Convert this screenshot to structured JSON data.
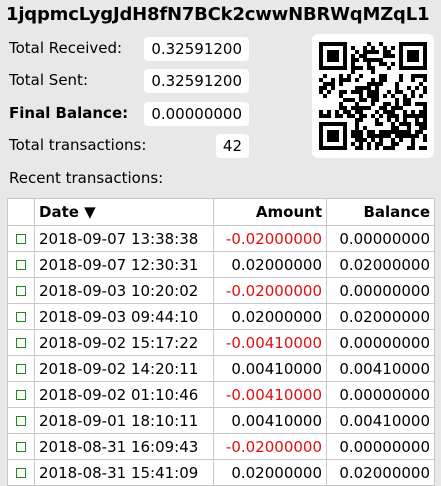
{
  "address": "1jqpmcLygJdH8fN7BCk2cwwNBRWqMZqL1",
  "stats": {
    "total_received_label": "Total Received:",
    "total_received": "0.32591200",
    "total_sent_label": "Total Sent:",
    "total_sent": "0.32591200",
    "final_balance_label": "Final Balance:",
    "final_balance": "0.00000000",
    "total_transactions_label": "Total transactions:",
    "total_transactions": "42"
  },
  "qr_icon": "qr-code-icon",
  "recent_label": "Recent transactions:",
  "table": {
    "headers": {
      "date": "Date ▼",
      "amount": "Amount",
      "balance": "Balance"
    },
    "rows": [
      {
        "date": "2018-09-07 13:38:38",
        "amount": "-0.02000000",
        "balance": "0.00000000",
        "negative": true
      },
      {
        "date": "2018-09-07 12:30:31",
        "amount": "0.02000000",
        "balance": "0.02000000",
        "negative": false
      },
      {
        "date": "2018-09-03 10:20:02",
        "amount": "-0.02000000",
        "balance": "0.00000000",
        "negative": true
      },
      {
        "date": "2018-09-03 09:44:10",
        "amount": "0.02000000",
        "balance": "0.02000000",
        "negative": false
      },
      {
        "date": "2018-09-02 15:17:22",
        "amount": "-0.00410000",
        "balance": "0.00000000",
        "negative": true
      },
      {
        "date": "2018-09-02 14:20:11",
        "amount": "0.00410000",
        "balance": "0.00410000",
        "negative": false
      },
      {
        "date": "2018-09-02 01:10:46",
        "amount": "-0.00410000",
        "balance": "0.00000000",
        "negative": true
      },
      {
        "date": "2018-09-01 18:10:11",
        "amount": "0.00410000",
        "balance": "0.00410000",
        "negative": false
      },
      {
        "date": "2018-08-31 16:09:43",
        "amount": "-0.02000000",
        "balance": "0.00000000",
        "negative": true
      },
      {
        "date": "2018-08-31 15:41:09",
        "amount": "0.02000000",
        "balance": "0.02000000",
        "negative": false
      }
    ]
  },
  "colors": {
    "negative": "#e01010",
    "check": "#1e8a1e"
  }
}
